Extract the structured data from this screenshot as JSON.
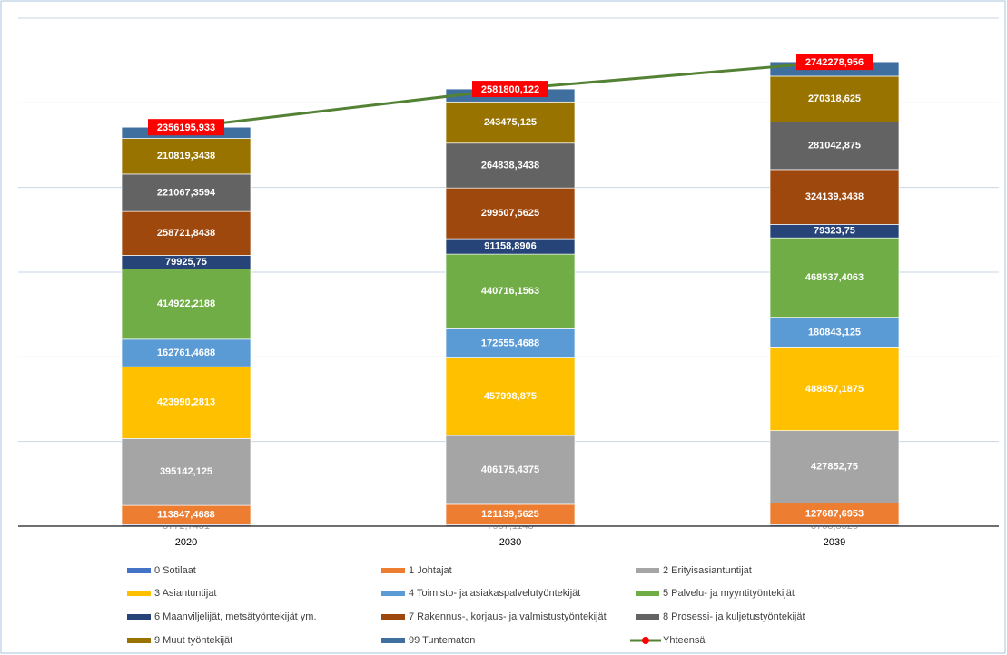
{
  "chart_data": {
    "type": "bar",
    "stacked": true,
    "categories": [
      "2020",
      "2030",
      "2039"
    ],
    "ylim": [
      0,
      3000000
    ],
    "yticks": [
      0,
      500000,
      1000000,
      1500000,
      2000000,
      2500000,
      3000000
    ],
    "grid": true,
    "series": [
      {
        "name": "0 Sotilaat",
        "color": "#4472c4",
        "values": [
          8772.7451,
          7937.1143,
          8768.5526
        ],
        "value_labels": [
          "8772,7451",
          "7937,1143",
          "8768,5526"
        ]
      },
      {
        "name": "1 Johtajat",
        "color": "#ed7d31",
        "values": [
          113847.4688,
          121139.5625,
          127687.6953
        ],
        "value_labels": [
          "113847,4688",
          "121139,5625",
          "127687,6953"
        ]
      },
      {
        "name": "2 Erityisasiantuntijat",
        "color": "#a5a5a5",
        "values": [
          395142.125,
          406175.4375,
          427852.75
        ],
        "value_labels": [
          "395142,125",
          "406175,4375",
          "427852,75"
        ]
      },
      {
        "name": "3 Asiantuntijat",
        "color": "#ffc000",
        "values": [
          423990.2813,
          457998.875,
          488857.1875
        ],
        "value_labels": [
          "423990,2813",
          "457998,875",
          "488857,1875"
        ]
      },
      {
        "name": "4 Toimisto- ja asiakaspalvelutyöntekijät",
        "color": "#5b9bd5",
        "values": [
          162761.4688,
          172555.4688,
          180843.125
        ],
        "value_labels": [
          "162761,4688",
          "172555,4688",
          "180843,125"
        ]
      },
      {
        "name": "5 Palvelu- ja myyntityöntekijät",
        "color": "#70ad47",
        "values": [
          414922.2188,
          440716.1563,
          468537.4063
        ],
        "value_labels": [
          "414922,2188",
          "440716,1563",
          "468537,4063"
        ]
      },
      {
        "name": "6 Maanviljelijät, metsätyöntekijät ym.",
        "color": "#264478",
        "values": [
          79925.75,
          91158.8906,
          79323.75
        ],
        "value_labels": [
          "79925,75",
          "91158,8906",
          "79323,75"
        ]
      },
      {
        "name": "7 Rakennus-, korjaus- ja valmistustyöntekijät",
        "color": "#9e480e",
        "values": [
          258721.8438,
          299507.5625,
          324139.3438
        ],
        "value_labels": [
          "258721,8438",
          "299507,5625",
          "324139,3438"
        ]
      },
      {
        "name": "8 Prosessi- ja kuljetustyöntekijät",
        "color": "#636363",
        "values": [
          221067.3594,
          264838.3438,
          281042.875
        ],
        "value_labels": [
          "221067,3594",
          "264838,3438",
          "281042,875"
        ]
      },
      {
        "name": "9 Muut työntekijät",
        "color": "#997300",
        "values": [
          210819.3438,
          243475.125,
          270318.625
        ],
        "value_labels": [
          "210819,3438",
          "243475,125",
          "270318,625"
        ]
      },
      {
        "name": "99 Tuntematon",
        "color": "#3f6f9f",
        "values": [
          66225.33,
          76297.59,
          84907.65
        ]
      },
      {
        "name": "Yhteensä",
        "type": "line",
        "color": "#548235",
        "marker_color": "#ff0000",
        "values": [
          2356195.933,
          2581800.122,
          2742278.956
        ],
        "value_labels": [
          "2356195,933",
          "2581800,122",
          "2742278,956"
        ]
      }
    ]
  }
}
